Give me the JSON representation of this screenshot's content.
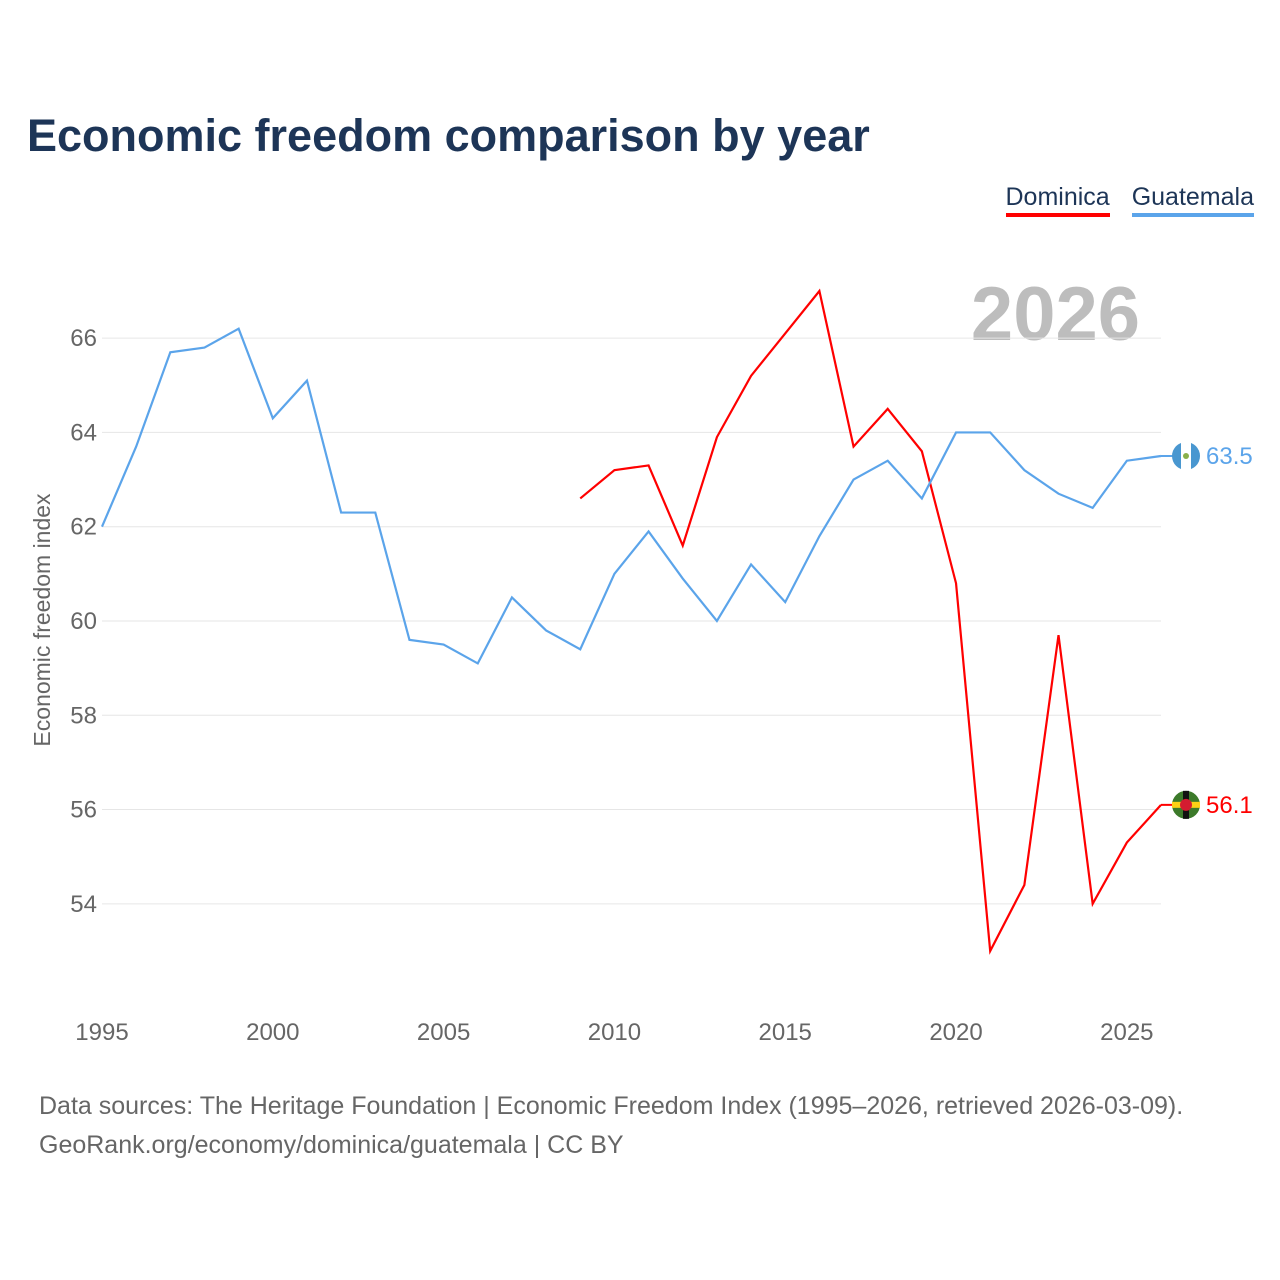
{
  "title": "Economic freedom comparison by year",
  "chart_data": {
    "type": "line",
    "title": "Economic freedom comparison by year",
    "xlabel": "",
    "ylabel": "Economic freedom index",
    "xlim": [
      1995,
      2026
    ],
    "ylim": [
      51.96,
      67.87
    ],
    "grid": true,
    "legend_placement": "top-right",
    "x_ticks": [
      "1995",
      "2000",
      "2005",
      "2010",
      "2015",
      "2020",
      "2025"
    ],
    "y_ticks": [
      "54",
      "56",
      "58",
      "60",
      "62",
      "64",
      "66"
    ],
    "year_watermark": "2026",
    "series": [
      {
        "name": "Dominica",
        "color": "#ff0000",
        "end_label": "56.1",
        "x": [
          2009,
          2010,
          2011,
          2012,
          2013,
          2014,
          2015,
          2016,
          2017,
          2018,
          2019,
          2020,
          2021,
          2022,
          2023,
          2024,
          2025,
          2026
        ],
        "values": [
          62.6,
          63.2,
          63.3,
          61.6,
          63.9,
          65.2,
          66.1,
          67.0,
          63.7,
          64.5,
          63.6,
          60.8,
          53.0,
          54.4,
          59.7,
          54.0,
          55.3,
          56.1
        ]
      },
      {
        "name": "Guatemala",
        "color": "#5ba4ea",
        "end_label": "63.5",
        "x": [
          1995,
          1996,
          1997,
          1998,
          1999,
          2000,
          2001,
          2002,
          2003,
          2004,
          2005,
          2006,
          2007,
          2008,
          2009,
          2010,
          2011,
          2012,
          2013,
          2014,
          2015,
          2016,
          2017,
          2018,
          2019,
          2020,
          2021,
          2022,
          2023,
          2024,
          2025,
          2026
        ],
        "values": [
          62.0,
          63.7,
          65.7,
          65.8,
          66.2,
          64.3,
          65.1,
          62.3,
          62.3,
          59.6,
          59.5,
          59.1,
          60.5,
          59.8,
          59.4,
          61.0,
          61.9,
          60.9,
          60.0,
          61.2,
          60.4,
          61.8,
          63.0,
          63.4,
          62.6,
          64.0,
          64.0,
          63.2,
          62.7,
          62.4,
          63.4,
          63.5
        ]
      }
    ]
  },
  "source_line1": "Data sources: The Heritage Foundation | Economic Freedom Index (1995–2026, retrieved 2026-03-09).",
  "source_line2": "GeoRank.org/economy/dominica/guatemala | CC BY"
}
